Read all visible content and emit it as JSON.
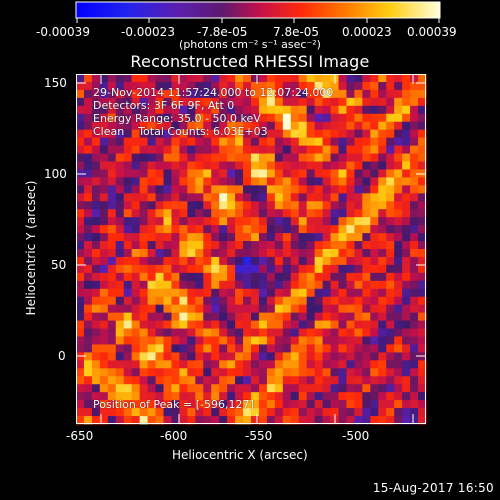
{
  "plot_title": "Reconstructed RHESSI Image",
  "colorbar": {
    "tick_labels": [
      "-0.00039",
      "-0.00023",
      "-7.8e-05",
      "7.8e-05",
      "0.00023",
      "0.00039"
    ],
    "units": "(photons cm⁻² s⁻¹ asec⁻²)"
  },
  "image_info": {
    "time_range": "29-Nov-2014 11:57:24.000 to 12:07:24.000",
    "detectors": "Detectors: 3F 6F 9F, Att 0",
    "energy_range": "Energy Range: 35.0 - 50.0 keV",
    "algorithm": "Clean    Total Counts: 6.03E+03",
    "peak_position": "Position of Peak = [-596,127]"
  },
  "x_axis": {
    "label": "Heliocentric X (arcsec)",
    "ticks": [
      "-650",
      "-600",
      "-550",
      "-500"
    ]
  },
  "y_axis": {
    "label": "Heliocentric Y (arcsec)",
    "ticks": [
      "0",
      "50",
      "100",
      "150"
    ]
  },
  "footer": {
    "timestamp": "15-Aug-2017 16:50"
  },
  "colors": {
    "background": "#000000",
    "text": "#ffffff"
  }
}
